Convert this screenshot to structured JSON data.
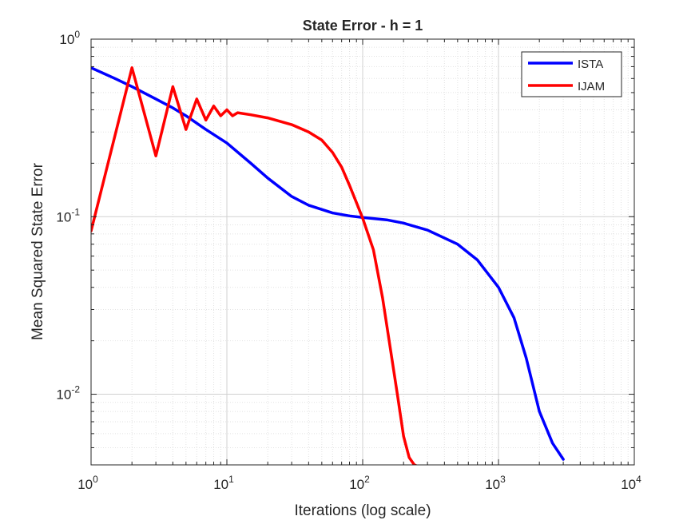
{
  "chart_data": {
    "type": "line",
    "title": "State Error - h = 1",
    "xlabel": "Iterations (log scale)",
    "ylabel": "Mean Squared State Error",
    "xscale": "log",
    "yscale": "log",
    "xlim": [
      1,
      10000
    ],
    "ylim": [
      0.004,
      1
    ],
    "grid": true,
    "minor_grid": true,
    "legend_position": "top-right",
    "x_ticks": [
      {
        "value": 1,
        "base": "10",
        "exp": "0"
      },
      {
        "value": 10,
        "base": "10",
        "exp": "1"
      },
      {
        "value": 100,
        "base": "10",
        "exp": "2"
      },
      {
        "value": 1000,
        "base": "10",
        "exp": "3"
      },
      {
        "value": 10000,
        "base": "10",
        "exp": "4"
      }
    ],
    "y_ticks": [
      {
        "value": 0.01,
        "base": "10",
        "exp": "-2"
      },
      {
        "value": 0.1,
        "base": "10",
        "exp": "-1"
      },
      {
        "value": 1,
        "base": "10",
        "exp": "0"
      }
    ],
    "series": [
      {
        "name": "ISTA",
        "color": "#0000ff",
        "x": [
          1,
          1.5,
          2,
          3,
          4,
          5,
          7,
          10,
          15,
          20,
          30,
          40,
          60,
          80,
          100,
          150,
          200,
          300,
          500,
          700,
          1000,
          1300,
          1600,
          2000,
          2500,
          3000
        ],
        "y": [
          0.69,
          0.6,
          0.54,
          0.46,
          0.41,
          0.37,
          0.31,
          0.26,
          0.2,
          0.165,
          0.13,
          0.116,
          0.105,
          0.101,
          0.099,
          0.096,
          0.092,
          0.084,
          0.07,
          0.057,
          0.04,
          0.027,
          0.016,
          0.008,
          0.0053,
          0.0043
        ]
      },
      {
        "name": "IJAM",
        "color": "#ff0000",
        "x": [
          1,
          2,
          3,
          4,
          5,
          6,
          7,
          8,
          9,
          10,
          11,
          12,
          15,
          20,
          30,
          40,
          50,
          60,
          70,
          80,
          90,
          100,
          120,
          140,
          160,
          180,
          200,
          220,
          240,
          260,
          300,
          500,
          1000,
          2000,
          3000
        ],
        "y": [
          0.083,
          0.69,
          0.22,
          0.54,
          0.31,
          0.46,
          0.35,
          0.42,
          0.37,
          0.4,
          0.37,
          0.385,
          0.375,
          0.36,
          0.33,
          0.3,
          0.27,
          0.23,
          0.19,
          0.15,
          0.12,
          0.098,
          0.065,
          0.035,
          0.018,
          0.01,
          0.0058,
          0.0044,
          0.004,
          0.0039,
          0.0039,
          0.0039,
          0.0039,
          0.0039,
          0.0039
        ]
      }
    ]
  }
}
